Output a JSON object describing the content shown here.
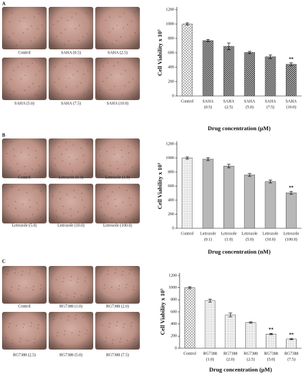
{
  "panels": [
    {
      "label": "A",
      "captions": [
        "Control",
        "SAHA  (0.5)",
        "SAHA  (2.5)",
        "SAHA  (5.0)",
        "SAHA  (7.5)",
        "SAHA  (10.0)"
      ]
    },
    {
      "label": "B",
      "captions": [
        "Control",
        "Letrozole (0.1)",
        "Letrozole (1.0)",
        "Letrozole (5.0)",
        "Letrozole (10.0)",
        "Letrozole (100.0)"
      ]
    },
    {
      "label": "C",
      "captions": [
        "Control",
        "RG7388  (1.0)",
        "RG7388  (2.0)",
        "RG7388  (2.5)",
        "RG7388  (5.0)",
        "RG7388  (7.5)"
      ]
    }
  ],
  "chart_data": [
    {
      "type": "bar",
      "ylabel": "Cell Viability x 10³",
      "xlabel": "Drug concentration (μM)",
      "categories": [
        [
          "Control"
        ],
        [
          "SAHA",
          "(0.5)"
        ],
        [
          "SAHA",
          "(2.5)"
        ],
        [
          "SAHA",
          "(5.0)"
        ],
        [
          "SAHA",
          "(7.5)"
        ],
        [
          "SAHA",
          "(10.0)"
        ]
      ],
      "values": [
        1000,
        770,
        690,
        605,
        545,
        440
      ],
      "errors": [
        15,
        15,
        45,
        15,
        25,
        20
      ],
      "significance": [
        null,
        null,
        null,
        null,
        null,
        "**"
      ],
      "ylim": [
        0,
        1200
      ],
      "yticks": [
        0,
        200,
        400,
        600,
        800,
        1000,
        1200
      ],
      "control_fill": "crosshatch",
      "bar_fill": "checker"
    },
    {
      "type": "bar",
      "ylabel": "Cell Viability x 10³",
      "xlabel": "Drug concentration (nM)",
      "categories": [
        [
          "Control"
        ],
        [
          "Letrozole",
          "(0.1)"
        ],
        [
          "Letrozole",
          "(1.0)"
        ],
        [
          "Letrozole",
          "(5.0)"
        ],
        [
          "Letrozole",
          "(10.0)"
        ],
        [
          "Letrozole",
          "(100.0)"
        ]
      ],
      "values": [
        1000,
        985,
        885,
        760,
        665,
        505
      ],
      "errors": [
        15,
        20,
        25,
        20,
        20,
        20
      ],
      "significance": [
        null,
        null,
        null,
        null,
        null,
        "**"
      ],
      "ylim": [
        0,
        1200
      ],
      "yticks": [
        0,
        200,
        400,
        600,
        800,
        1000,
        1200
      ],
      "control_fill": "dots",
      "bar_fill": "gray"
    },
    {
      "type": "bar",
      "ylabel": "Cell Viability x 10³",
      "xlabel": "Drug concentration (μM)",
      "categories": [
        [
          "Control"
        ],
        [
          "RG7388",
          "(1.0)"
        ],
        [
          "RG7388",
          "(2.0)"
        ],
        [
          "RG7388",
          "(2.5)"
        ],
        [
          "RG7388",
          "(5.0)"
        ],
        [
          "RG7388",
          "(7.5)"
        ]
      ],
      "values": [
        1000,
        785,
        550,
        425,
        235,
        150
      ],
      "errors": [
        15,
        25,
        30,
        10,
        10,
        10
      ],
      "significance": [
        null,
        null,
        null,
        null,
        "**",
        "**"
      ],
      "ylim": [
        0,
        1200
      ],
      "yticks": [
        0,
        200,
        400,
        600,
        800,
        1000,
        1200
      ],
      "control_fill": "crosshatch",
      "bar_fill": "dots"
    }
  ]
}
